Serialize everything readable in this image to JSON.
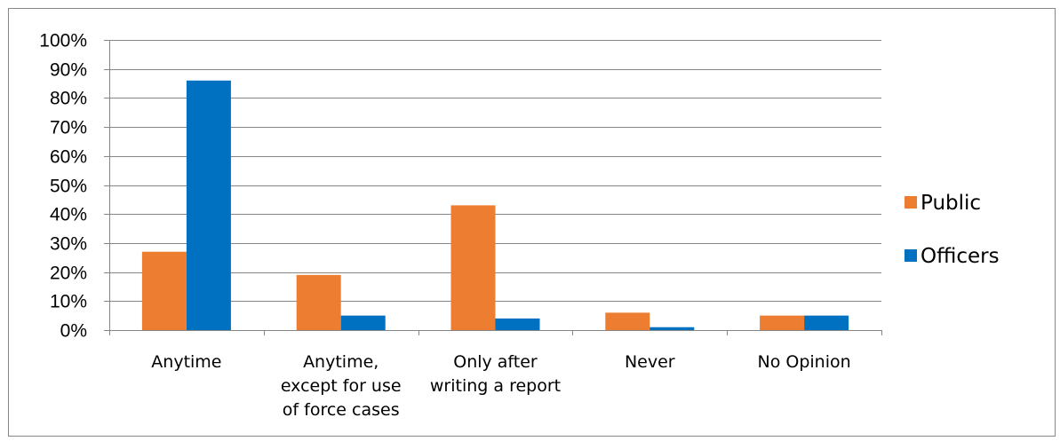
{
  "chart_data": {
    "type": "bar",
    "title": "",
    "xlabel": "",
    "ylabel": "",
    "ylim": [
      0,
      100
    ],
    "y_ticks": [
      "0%",
      "10%",
      "20%",
      "30%",
      "40%",
      "50%",
      "60%",
      "70%",
      "80%",
      "90%",
      "100%"
    ],
    "categories": [
      [
        "Anytime"
      ],
      [
        "Anytime,",
        "except for use",
        "of force cases"
      ],
      [
        "Only after",
        "writing a report"
      ],
      [
        "Never"
      ],
      [
        "No Opinion"
      ]
    ],
    "series": [
      {
        "name": "Public",
        "color": "#ED7D31",
        "values": [
          27,
          19,
          43,
          6,
          5
        ]
      },
      {
        "name": "Officers",
        "color": "#0070C0",
        "values": [
          86,
          5,
          4,
          1,
          5
        ]
      }
    ],
    "grid": true,
    "legend_position": "right"
  }
}
